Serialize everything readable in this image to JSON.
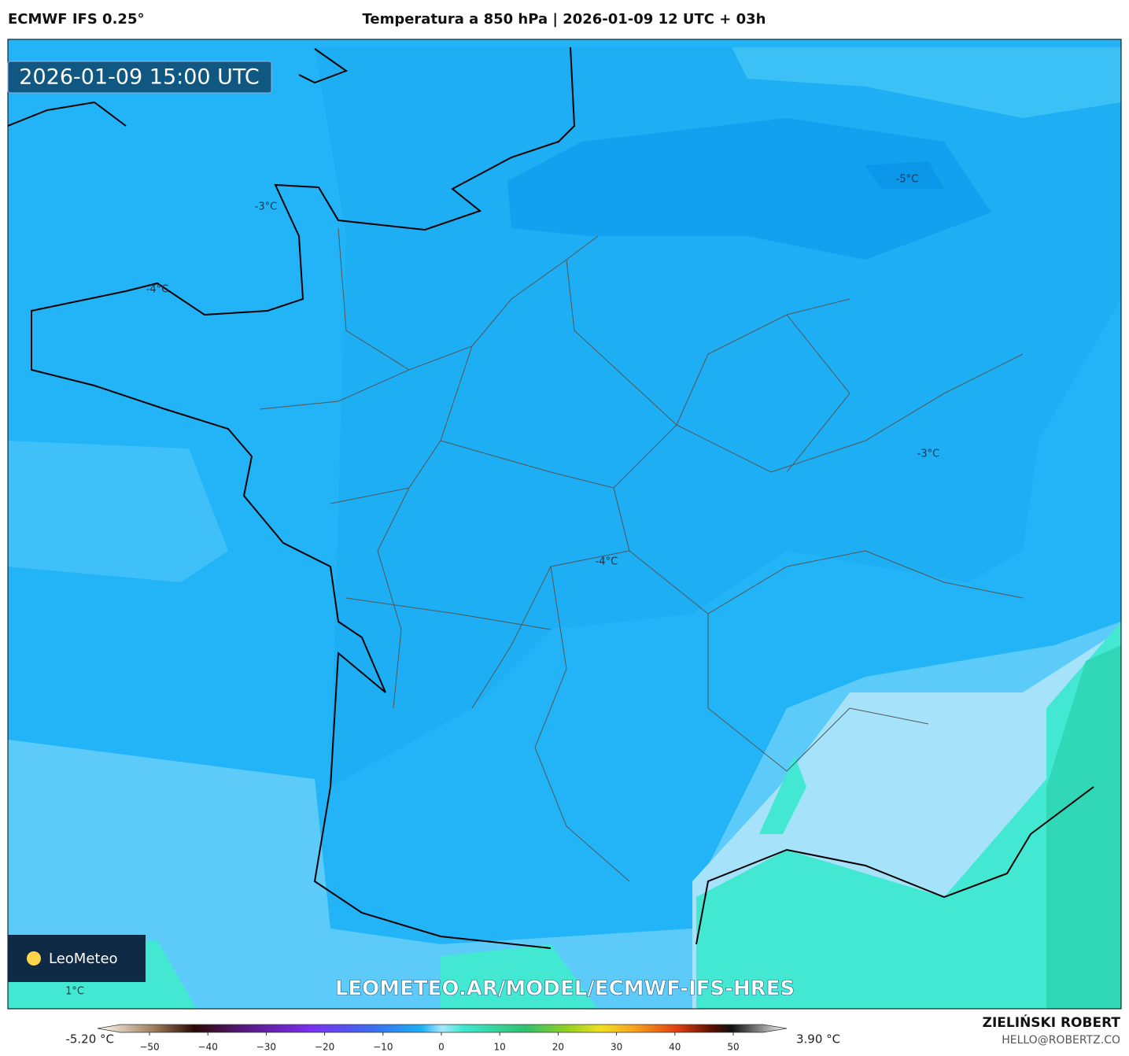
{
  "header": {
    "model": "ECMWF IFS 0.25°",
    "title": "Temperatura a 850 hPa | 2026-01-09 12 UTC + 03h"
  },
  "timestamp": "2026-01-09 15:00 UTC",
  "contour_labels": [
    "-3°C",
    "-4°C",
    "-5°C",
    "-3°C",
    "-4°C",
    "1°C"
  ],
  "logo": {
    "text": "LeoMeteo"
  },
  "watermark": "LEOMETEO.AR/MODEL/ECMWF-IFS-HRES",
  "colorbar": {
    "min_label": "-5.20 °C",
    "max_label": "3.90 °C",
    "ticks": [
      {
        "value": -50,
        "label": "−50"
      },
      {
        "value": -40,
        "label": "−40"
      },
      {
        "value": -30,
        "label": "−30"
      },
      {
        "value": -20,
        "label": "−20"
      },
      {
        "value": -10,
        "label": "−10"
      },
      0,
      10,
      20,
      30,
      40,
      50
    ]
  },
  "footer": {
    "author": "ZIELIŃSKI ROBERT",
    "email": "HELLO@ROBERTZ.CO"
  }
}
